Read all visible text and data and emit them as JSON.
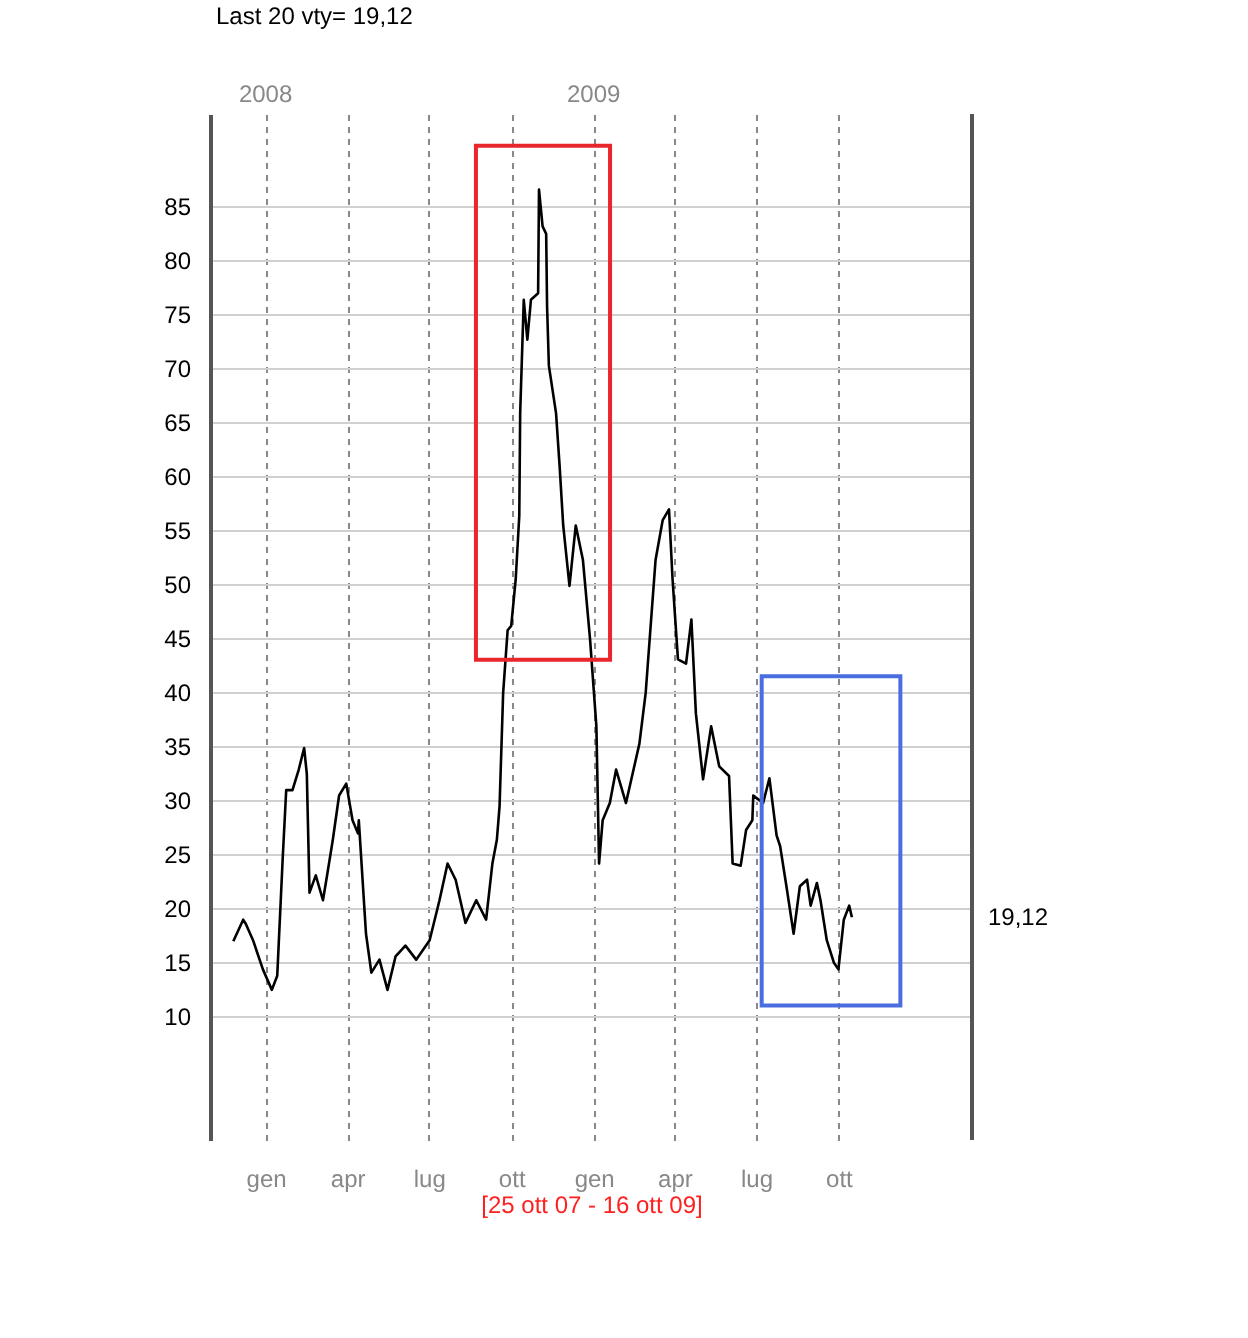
{
  "chart_data": {
    "type": "line",
    "title": "Last 20 vty= 19,12",
    "xlabel": "[25 ott 07 - 16 ott 09]",
    "x": [
      "2007-11-26",
      "2007-12-07",
      "2007-12-10",
      "2007-12-18",
      "2007-12-29",
      "2008-01-08",
      "2008-01-14",
      "2008-01-20",
      "2008-01-24",
      "2008-01-31",
      "2008-02-07",
      "2008-02-13",
      "2008-02-16",
      "2008-02-19",
      "2008-02-26",
      "2008-03-05",
      "2008-03-10",
      "2008-03-16",
      "2008-03-23",
      "2008-03-31",
      "2008-04-07",
      "2008-04-13",
      "2008-04-14",
      "2008-04-22",
      "2008-04-28",
      "2008-05-07",
      "2008-05-16",
      "2008-05-25",
      "2008-06-05",
      "2008-06-17",
      "2008-07-02",
      "2008-07-13",
      "2008-07-22",
      "2008-07-31",
      "2008-08-11",
      "2008-08-23",
      "2008-09-03",
      "2008-09-10",
      "2008-09-15",
      "2008-09-18",
      "2008-09-22",
      "2008-09-27",
      "2008-10-01",
      "2008-10-06",
      "2008-10-10",
      "2008-10-11",
      "2008-10-15",
      "2008-10-19",
      "2008-10-23",
      "2008-10-31",
      "2008-11-01",
      "2008-11-05",
      "2008-11-09",
      "2008-11-10",
      "2008-11-12",
      "2008-11-20",
      "2008-11-24",
      "2008-11-28",
      "2008-12-05",
      "2008-12-12",
      "2008-12-20",
      "2008-12-28",
      "2009-01-04",
      "2009-01-07",
      "2009-01-11",
      "2009-01-19",
      "2009-01-26",
      "2009-02-06",
      "2009-02-21",
      "2009-02-28",
      "2009-03-11",
      "2009-03-19",
      "2009-03-26",
      "2009-03-30",
      "2009-04-05",
      "2009-04-14",
      "2009-04-20",
      "2009-04-25",
      "2009-05-03",
      "2009-05-12",
      "2009-05-21",
      "2009-06-01",
      "2009-06-05",
      "2009-06-14",
      "2009-06-20",
      "2009-06-27",
      "2009-06-28",
      "2009-07-09",
      "2009-07-16",
      "2009-07-24",
      "2009-07-28",
      "2009-08-04",
      "2009-08-12",
      "2009-08-19",
      "2009-08-27",
      "2009-08-31",
      "2009-09-07",
      "2009-09-11",
      "2009-09-18",
      "2009-09-26",
      "2009-10-01",
      "2009-10-07",
      "2009-10-13",
      "2009-10-16"
    ],
    "series": [
      {
        "color": "#000000",
        "values": [
          16.9,
          18.9,
          18.5,
          17,
          14.3,
          12.4,
          13.7,
          24.4,
          30.9,
          30.9,
          32.8,
          34.8,
          32.4,
          21.4,
          23,
          20.7,
          23.2,
          26.3,
          30.4,
          31.5,
          28.1,
          26.9,
          28.1,
          17.6,
          14,
          15.2,
          12.4,
          15.5,
          16.5,
          15.2,
          17,
          20.7,
          24.1,
          22.6,
          18.6,
          20.7,
          18.9,
          24.1,
          26.3,
          29.4,
          39.9,
          45.7,
          46.1,
          50.4,
          56.3,
          65.8,
          76.3,
          72.6,
          76.3,
          76.9,
          86.5,
          83.1,
          82.4,
          75.7,
          70.2,
          65.8,
          60.9,
          55.4,
          49.8,
          55.4,
          52.2,
          44.8,
          36.8,
          24.1,
          28.1,
          29.7,
          32.8,
          29.7,
          35.2,
          39.9,
          52.2,
          55.9,
          56.9,
          50.4,
          43,
          42.6,
          46.7,
          38,
          31.9,
          36.8,
          33.1,
          32.2,
          24.1,
          23.9,
          27.2,
          28.1,
          30.4,
          29.7,
          32,
          26.7,
          25.7,
          22,
          17.6,
          22,
          22.6,
          20.2,
          22.3,
          20.7,
          17,
          14.9,
          14.3,
          18.9,
          20.2,
          19.12
        ]
      }
    ],
    "xlim": [
      "2007-10-31",
      "2010-02-27"
    ],
    "xticks": [
      {
        "value": "2008-01-01",
        "label": "gen"
      },
      {
        "value": "2008-04-01",
        "label": "apr"
      },
      {
        "value": "2008-07-01",
        "label": "lug"
      },
      {
        "value": "2008-10-01",
        "label": "ott"
      },
      {
        "value": "2009-01-01",
        "label": "gen"
      },
      {
        "value": "2009-04-01",
        "label": "apr"
      },
      {
        "value": "2009-07-01",
        "label": "lug"
      },
      {
        "value": "2009-10-01",
        "label": "ott"
      }
    ],
    "x2lim": [
      "2007-10-31",
      "2010-02-27"
    ],
    "x2ticks": [
      {
        "value": "2008-01-01",
        "label": "2008"
      },
      {
        "value": "2009-01-01",
        "label": "2009"
      }
    ],
    "ylim": [
      -1.5,
      93.5
    ],
    "yticks": [
      10,
      15,
      20,
      25,
      30,
      35,
      40,
      45,
      50,
      55,
      60,
      65,
      70,
      75,
      80,
      85
    ],
    "grid": true,
    "legend": false,
    "marker": "none",
    "line_style": "solid",
    "annotations": [
      "19,12"
    ]
  }
}
